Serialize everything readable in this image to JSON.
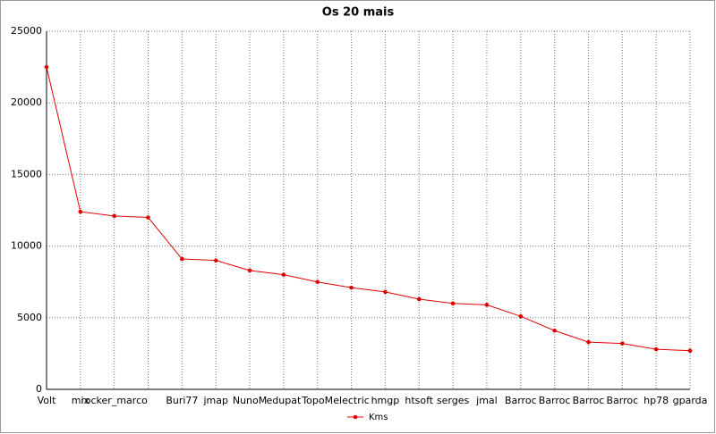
{
  "chart_data": {
    "type": "line",
    "title": "Os 20 mais",
    "categories": [
      "Volt",
      "mix",
      "rocker_marco",
      null,
      "Buri77",
      "jmap",
      "NunoM",
      "edupat",
      "TopoM",
      "electric",
      "hmgp",
      "htsoft",
      "serges",
      "jmal",
      "Barroc",
      "Barroc",
      "Barroc",
      "Barroc",
      "hp78",
      "gparda"
    ],
    "series": [
      {
        "name": "Kms",
        "color": "#e00000",
        "values": [
          22500,
          12400,
          12100,
          12000,
          9100,
          9000,
          8300,
          8000,
          7500,
          7100,
          6800,
          6300,
          6000,
          5900,
          5100,
          4100,
          3300,
          3200,
          2800,
          2700
        ]
      }
    ],
    "ylim": [
      0,
      25000
    ],
    "yticks": [
      0,
      5000,
      10000,
      15000,
      20000,
      25000
    ],
    "grid": true,
    "legend": "bottom"
  }
}
